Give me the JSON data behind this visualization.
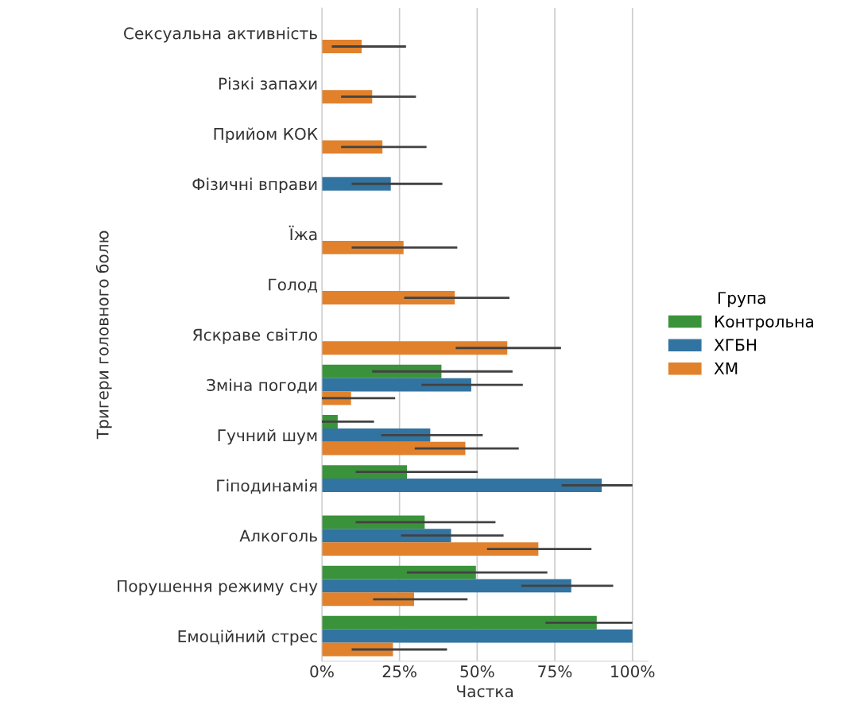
{
  "chart_data": {
    "type": "bar",
    "orientation": "horizontal",
    "xlabel": "Частка",
    "ylabel": "Тригери головного болю",
    "legend_title": "Група",
    "legend": "right",
    "grid": "x",
    "categories": [
      "Сексуальна активність",
      "Різкі запахи",
      "Прийом КОК",
      "Фізичні вправи",
      "Їжа",
      "Голод",
      "Яскраве світло",
      "Зміна погоди",
      "Гучний шум",
      "Гіподинамія",
      "Алкоголь",
      "Порушення режиму сну",
      "Емоційний стрес"
    ],
    "xlim": [
      0,
      105
    ],
    "xticks": [
      {
        "value": 0,
        "label": "0%"
      },
      {
        "value": 25,
        "label": "25%"
      },
      {
        "value": 50,
        "label": "50%"
      },
      {
        "value": 75,
        "label": "75%"
      },
      {
        "value": 100,
        "label": "100%"
      }
    ],
    "series": [
      {
        "name": "Контрольна",
        "color": "#3a923a",
        "values": [
          null,
          null,
          null,
          null,
          null,
          null,
          null,
          38.5,
          5.1,
          27.4,
          33.1,
          49.6,
          88.5
        ],
        "errors": [
          null,
          null,
          null,
          null,
          null,
          null,
          null,
          [
            16.2,
            61.4
          ],
          [
            0,
            16.8
          ],
          [
            10.9,
            50.2
          ],
          [
            10.9,
            55.9
          ],
          [
            27.4,
            72.6
          ],
          [
            72.0,
            100
          ]
        ]
      },
      {
        "name": "ХГБН",
        "color": "#3274a1",
        "values": [
          null,
          null,
          null,
          22.2,
          null,
          null,
          null,
          48.1,
          34.9,
          90.1,
          41.6,
          80.3,
          100
        ],
        "errors": [
          null,
          null,
          null,
          [
            9.6,
            38.8
          ],
          null,
          null,
          null,
          [
            32.1,
            64.7
          ],
          [
            19.1,
            51.8
          ],
          [
            77.2,
            100
          ],
          [
            25.5,
            58.5
          ],
          [
            64.2,
            93.8
          ],
          null
        ]
      },
      {
        "name": "ХМ",
        "color": "#e1812c",
        "values": [
          12.8,
          16.2,
          19.5,
          null,
          26.3,
          42.8,
          59.7,
          9.4,
          46.2,
          null,
          69.7,
          29.7,
          22.9
        ],
        "errors": [
          [
            3.2,
            27.1
          ],
          [
            6.2,
            30.3
          ],
          [
            6.2,
            33.7
          ],
          null,
          [
            9.6,
            43.6
          ],
          [
            26.5,
            60.4
          ],
          [
            43.1,
            77.0
          ],
          [
            0,
            23.6
          ],
          [
            29.9,
            63.4
          ],
          null,
          [
            53.2,
            86.8
          ],
          [
            16.5,
            46.9
          ],
          [
            9.6,
            40.3
          ]
        ]
      }
    ]
  }
}
